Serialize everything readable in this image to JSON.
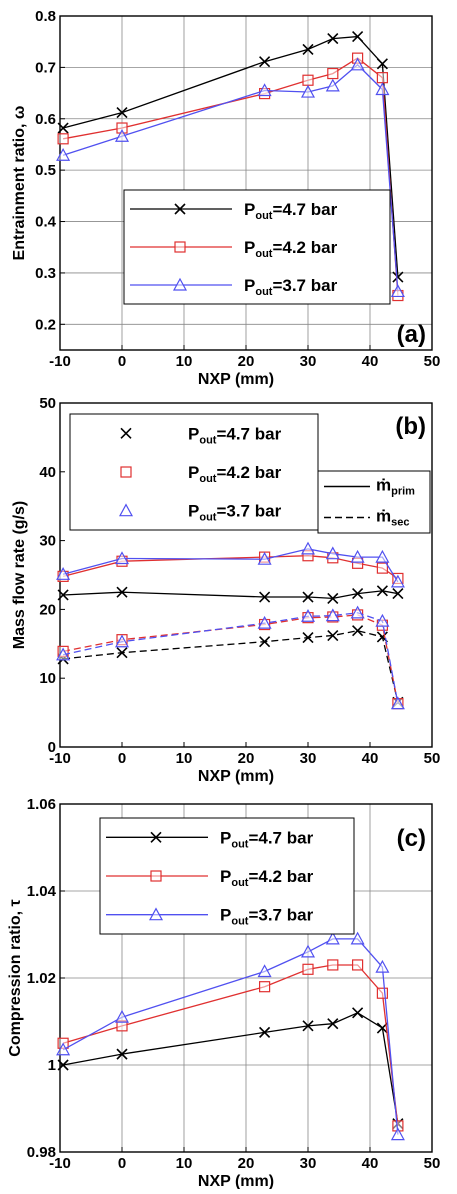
{
  "chart_data": [
    {
      "id": "a",
      "type": "line",
      "panel_label": "(a)",
      "xlabel": "NXP (mm)",
      "ylabel": "Entrainment ratio, ω",
      "xlim": [
        -10,
        50
      ],
      "ylim": [
        0.15,
        0.8
      ],
      "xticks": [
        -10,
        0,
        10,
        20,
        30,
        40,
        50
      ],
      "yticks": [
        0.2,
        0.3,
        0.4,
        0.5,
        0.6,
        0.7,
        0.8
      ],
      "ytick_labels": [
        "0.2",
        "0.3",
        "0.4",
        "0.5",
        "0.6",
        "0.7",
        "0.8"
      ],
      "grid": true,
      "legend_position": "center-left",
      "series": [
        {
          "name": "Pout=4.7 bar",
          "label_main": "P",
          "label_sub": "out",
          "label_rest": "=4.7 bar",
          "color": "#000000",
          "marker": "x",
          "linestyle": "solid",
          "x": [
            -9.5,
            0,
            23,
            30,
            34,
            38,
            42,
            44.5
          ],
          "y": [
            0.582,
            0.612,
            0.711,
            0.735,
            0.756,
            0.76,
            0.707,
            0.292
          ]
        },
        {
          "name": "Pout=4.2 bar",
          "label_main": "P",
          "label_sub": "out",
          "label_rest": "=4.2 bar",
          "color": "#e03030",
          "marker": "square",
          "linestyle": "solid",
          "x": [
            -9.5,
            0,
            23,
            30,
            34,
            38,
            42,
            44.5
          ],
          "y": [
            0.561,
            0.582,
            0.649,
            0.675,
            0.688,
            0.718,
            0.68,
            0.256
          ]
        },
        {
          "name": "Pout=3.7 bar",
          "label_main": "P",
          "label_sub": "out",
          "label_rest": "=3.7 bar",
          "color": "#5050f0",
          "marker": "triangle",
          "linestyle": "solid",
          "x": [
            -9.5,
            0,
            23,
            30,
            34,
            38,
            42,
            44.5
          ],
          "y": [
            0.529,
            0.566,
            0.655,
            0.652,
            0.664,
            0.705,
            0.657,
            0.264
          ]
        }
      ]
    },
    {
      "id": "b",
      "type": "line",
      "panel_label": "(b)",
      "xlabel": "NXP (mm)",
      "ylabel": "Mass flow rate (g/s)",
      "xlim": [
        -10,
        50
      ],
      "ylim": [
        0,
        50
      ],
      "xticks": [
        -10,
        0,
        10,
        20,
        30,
        40,
        50
      ],
      "yticks": [
        0,
        10,
        20,
        30,
        40,
        50
      ],
      "ytick_labels": [
        "0",
        "10",
        "20",
        "30",
        "40",
        "50"
      ],
      "grid": false,
      "legend_position": "top-left",
      "linestyle_legend": [
        {
          "style": "solid",
          "main": "ṁ",
          "sub": "prim"
        },
        {
          "style": "dashed",
          "main": "ṁ",
          "sub": "sec"
        }
      ],
      "series": [
        {
          "name": "Pout=4.7 bar (prim)",
          "label_main": "P",
          "label_sub": "out",
          "label_rest": "=4.7 bar",
          "in_legend": true,
          "color": "#000000",
          "marker": "x",
          "linestyle": "solid",
          "x": [
            -9.5,
            0,
            23,
            30,
            34,
            38,
            42,
            44.5
          ],
          "y": [
            22.1,
            22.5,
            21.8,
            21.8,
            21.6,
            22.3,
            22.7,
            22.3
          ]
        },
        {
          "name": "Pout=4.2 bar (prim)",
          "label_main": "P",
          "label_sub": "out",
          "label_rest": "=4.2 bar",
          "in_legend": true,
          "color": "#e03030",
          "marker": "square",
          "linestyle": "solid",
          "x": [
            -9.5,
            0,
            23,
            30,
            34,
            38,
            42,
            44.5
          ],
          "y": [
            24.8,
            27.0,
            27.6,
            27.8,
            27.5,
            26.7,
            26.0,
            24.5
          ]
        },
        {
          "name": "Pout=3.7 bar (prim)",
          "label_main": "P",
          "label_sub": "out",
          "label_rest": "=3.7 bar",
          "in_legend": true,
          "color": "#5050f0",
          "marker": "triangle",
          "linestyle": "solid",
          "x": [
            -9.5,
            0,
            23,
            30,
            34,
            38,
            42,
            44.5
          ],
          "y": [
            25.1,
            27.4,
            27.3,
            28.8,
            28.1,
            27.6,
            27.6,
            24.0
          ]
        },
        {
          "name": "Pout=4.7 bar (sec)",
          "in_legend": false,
          "color": "#000000",
          "marker": "x",
          "linestyle": "dashed",
          "x": [
            -9.5,
            0,
            23,
            30,
            34,
            38,
            42,
            44.5
          ],
          "y": [
            12.8,
            13.7,
            15.3,
            15.9,
            16.2,
            16.9,
            16.0,
            6.5
          ]
        },
        {
          "name": "Pout=4.2 bar (sec)",
          "in_legend": false,
          "color": "#e03030",
          "marker": "square",
          "linestyle": "dashed",
          "x": [
            -9.5,
            0,
            23,
            30,
            34,
            38,
            42,
            44.5
          ],
          "y": [
            13.9,
            15.6,
            17.8,
            18.8,
            18.9,
            19.2,
            17.7,
            6.3
          ]
        },
        {
          "name": "Pout=3.7 bar (sec)",
          "in_legend": false,
          "color": "#5050f0",
          "marker": "triangle",
          "linestyle": "dashed",
          "x": [
            -9.5,
            0,
            23,
            30,
            34,
            38,
            42,
            44.5
          ],
          "y": [
            13.4,
            15.3,
            18.0,
            19.0,
            19.1,
            19.5,
            18.3,
            6.3
          ]
        }
      ]
    },
    {
      "id": "c",
      "type": "line",
      "panel_label": "(c)",
      "xlabel": "NXP (mm)",
      "ylabel": "Compression ratio, τ",
      "xlim": [
        -10,
        50
      ],
      "ylim": [
        0.98,
        1.06
      ],
      "xticks": [
        -10,
        0,
        10,
        20,
        30,
        40,
        50
      ],
      "yticks": [
        0.98,
        1.0,
        1.02,
        1.04,
        1.06
      ],
      "ytick_labels": [
        "0.98",
        "1",
        "1.02",
        "1.04",
        "1.06"
      ],
      "grid": true,
      "legend_position": "top-left",
      "series": [
        {
          "name": "Pout=4.7 bar",
          "label_main": "P",
          "label_sub": "out",
          "label_rest": "=4.7 bar",
          "color": "#000000",
          "marker": "x",
          "linestyle": "solid",
          "x": [
            -9.5,
            0,
            23,
            30,
            34,
            38,
            42,
            44.5
          ],
          "y": [
            1.0,
            1.0025,
            1.0075,
            1.009,
            1.0095,
            1.012,
            1.0085,
            0.9865
          ]
        },
        {
          "name": "Pout=4.2 bar",
          "label_main": "P",
          "label_sub": "out",
          "label_rest": "=4.2 bar",
          "color": "#e03030",
          "marker": "square",
          "linestyle": "solid",
          "x": [
            -9.5,
            0,
            23,
            30,
            34,
            38,
            42,
            44.5
          ],
          "y": [
            1.005,
            1.009,
            1.018,
            1.022,
            1.023,
            1.023,
            1.0165,
            0.986
          ]
        },
        {
          "name": "Pout=3.7 bar",
          "label_main": "P",
          "label_sub": "out",
          "label_rest": "=3.7 bar",
          "color": "#5050f0",
          "marker": "triangle",
          "linestyle": "solid",
          "x": [
            -9.5,
            0,
            23,
            30,
            34,
            38,
            42,
            44.5
          ],
          "y": [
            1.0035,
            1.011,
            1.0215,
            1.026,
            1.029,
            1.029,
            1.0225,
            0.984
          ]
        }
      ]
    }
  ]
}
